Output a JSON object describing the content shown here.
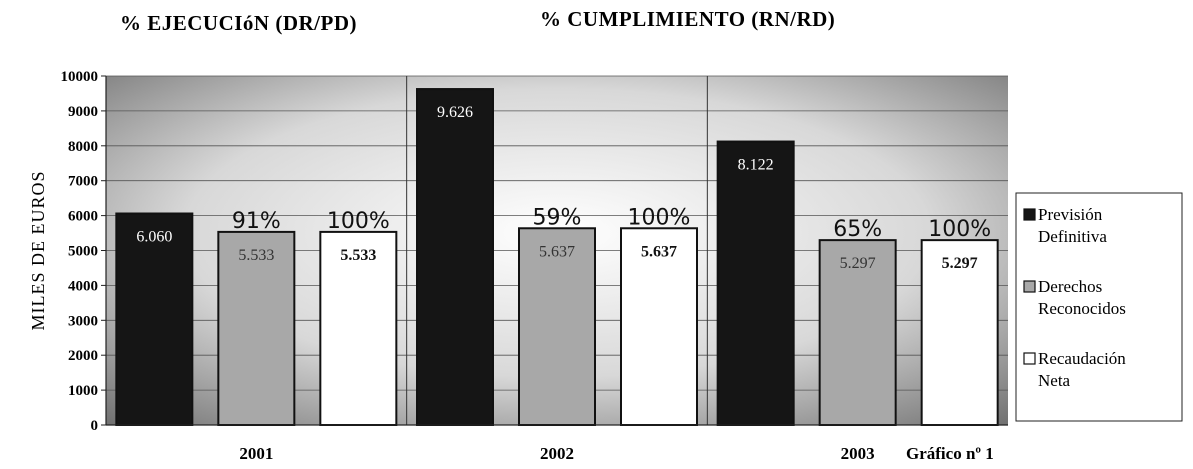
{
  "header": {
    "left": "% EJECUCIóN (DR/PD)",
    "right": "% CUMPLIMIENTO (RN/RD)"
  },
  "note": "Gráfico nº 1",
  "colors": {
    "prevision": "#151515",
    "derechos": "#a8a8a8",
    "recaudacion": "#ffffff",
    "background_light": "#ffffff",
    "background_dark": "#6e6e6e"
  },
  "chart_data": {
    "type": "bar",
    "ylabel": "MILES DE EUROS",
    "xlabel": "",
    "ylim": [
      0,
      10000
    ],
    "yticks": [
      0,
      1000,
      2000,
      3000,
      4000,
      5000,
      6000,
      7000,
      8000,
      9000,
      10000
    ],
    "categories": [
      "2001",
      "2002",
      "2003"
    ],
    "series": [
      {
        "name": "Previsión Definitiva",
        "values": [
          6060,
          9626,
          8122
        ],
        "labels": [
          "6.060",
          "9.626",
          "8.122"
        ]
      },
      {
        "name": "Derechos Reconocidos",
        "values": [
          5533,
          5637,
          5297
        ],
        "labels": [
          "5.533",
          "5.637",
          "5.297"
        ],
        "annotations": [
          "91%",
          "59%",
          "65%"
        ]
      },
      {
        "name": "Recaudación Neta",
        "values": [
          5533,
          5637,
          5297
        ],
        "labels": [
          "5.533",
          "5.637",
          "5.297"
        ],
        "annotations": [
          "100%",
          "100%",
          "100%"
        ]
      }
    ],
    "legend": {
      "position": "right",
      "entries": [
        {
          "line1": "Previsión",
          "line2": "Definitiva"
        },
        {
          "line1": "Derechos",
          "line2": "Reconocidos"
        },
        {
          "line1": "Recaudación",
          "line2": "Neta"
        }
      ]
    },
    "grid": true
  }
}
